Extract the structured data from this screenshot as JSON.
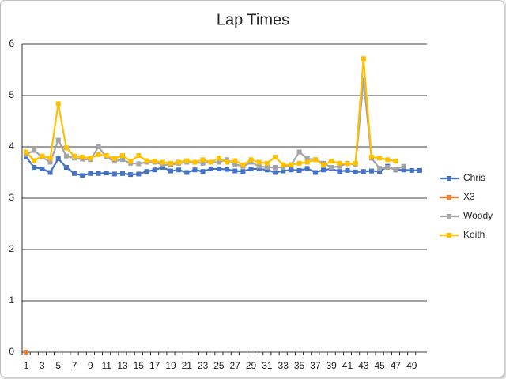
{
  "chart_data": {
    "type": "line",
    "title": "Lap Times",
    "categories": [
      1,
      2,
      3,
      4,
      5,
      6,
      7,
      8,
      9,
      10,
      11,
      12,
      13,
      14,
      15,
      16,
      17,
      18,
      19,
      20,
      21,
      22,
      23,
      24,
      25,
      26,
      27,
      28,
      29,
      30,
      31,
      32,
      33,
      34,
      35,
      36,
      37,
      38,
      39,
      40,
      41,
      42,
      43,
      44,
      45,
      46,
      47,
      48,
      49,
      50
    ],
    "category_label_step": 2,
    "ylim": [
      0,
      6
    ],
    "yticks": [
      0,
      1,
      2,
      3,
      4,
      5,
      6
    ],
    "grid": true,
    "legend": "right",
    "series": [
      {
        "name": "Chris",
        "color": "#4472c4",
        "values": [
          3.8,
          3.6,
          3.57,
          3.5,
          3.77,
          3.6,
          3.48,
          3.44,
          3.48,
          3.48,
          3.49,
          3.47,
          3.48,
          3.46,
          3.47,
          3.52,
          3.55,
          3.6,
          3.53,
          3.55,
          3.5,
          3.55,
          3.52,
          3.57,
          3.57,
          3.56,
          3.53,
          3.52,
          3.57,
          3.57,
          3.55,
          3.5,
          3.53,
          3.55,
          3.54,
          3.58,
          3.5,
          3.55,
          3.57,
          3.52,
          3.54,
          3.51,
          3.52,
          3.53,
          3.52,
          3.62,
          3.55,
          3.55,
          3.54,
          3.54
        ]
      },
      {
        "name": "X3",
        "color": "#ed7d31",
        "values": [
          0,
          null,
          null,
          null,
          null,
          null,
          null,
          null,
          null,
          null,
          null,
          null,
          null,
          null,
          null,
          null,
          null,
          null,
          null,
          null,
          null,
          null,
          null,
          null,
          null,
          null,
          null,
          null,
          null,
          null,
          null,
          null,
          null,
          null,
          null,
          null,
          null,
          null,
          null,
          null,
          null,
          null,
          null,
          null,
          null,
          null,
          null,
          null,
          null,
          null
        ]
      },
      {
        "name": "Woody",
        "color": "#a5a5a5",
        "values": [
          3.85,
          3.93,
          3.8,
          3.7,
          4.13,
          3.82,
          3.78,
          3.76,
          3.75,
          4.0,
          3.8,
          3.72,
          3.75,
          3.68,
          3.67,
          3.7,
          3.7,
          3.65,
          3.65,
          3.68,
          3.7,
          3.7,
          3.68,
          3.7,
          3.7,
          3.75,
          3.66,
          3.62,
          3.7,
          3.62,
          3.6,
          3.6,
          3.6,
          3.65,
          3.9,
          3.77,
          3.75,
          3.68,
          3.6,
          3.62,
          3.68,
          3.65,
          5.3,
          3.78,
          3.58,
          3.6,
          3.56,
          3.62,
          null,
          null
        ]
      },
      {
        "name": "Keith",
        "color": "#ffc000",
        "values": [
          3.9,
          3.73,
          3.82,
          3.78,
          4.84,
          3.98,
          3.82,
          3.8,
          3.78,
          3.85,
          3.83,
          3.77,
          3.83,
          3.72,
          3.83,
          3.73,
          3.72,
          3.7,
          3.68,
          3.7,
          3.73,
          3.7,
          3.75,
          3.7,
          3.78,
          3.7,
          3.73,
          3.65,
          3.75,
          3.7,
          3.68,
          3.8,
          3.65,
          3.65,
          3.68,
          3.7,
          3.75,
          3.65,
          3.72,
          3.68,
          3.67,
          3.68,
          5.72,
          3.8,
          3.78,
          3.75,
          3.72,
          null,
          null,
          null
        ]
      }
    ]
  }
}
